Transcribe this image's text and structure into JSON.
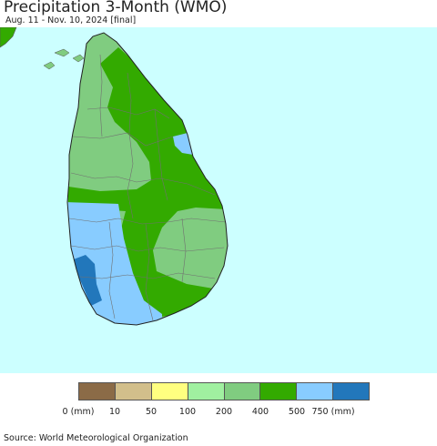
{
  "header": {
    "title": "Precipitation 3-Month (WMO)",
    "subtitle": "Aug. 11 - Nov. 10, 2024 [final]"
  },
  "map": {
    "ocean_color": "#ccffff",
    "region": "Sri Lanka",
    "zones": [
      {
        "class": "200-400",
        "color": "#80cc80"
      },
      {
        "class": "400-500",
        "color": "#33aa00"
      },
      {
        "class": "500-750",
        "color": "#88ccff"
      },
      {
        "class": "750+",
        "color": "#2277bb"
      }
    ]
  },
  "legend": {
    "colors": [
      "#8b6b47",
      "#d2bf8b",
      "#ffff80",
      "#a0f0a0",
      "#80cc80",
      "#33aa00",
      "#88ccff",
      "#2277bb"
    ],
    "labels": [
      "0 (mm)",
      "10",
      "50",
      "100",
      "200",
      "400",
      "500",
      "750 (mm)"
    ]
  },
  "footer": {
    "source": "Source: World Meteorological Organization"
  }
}
